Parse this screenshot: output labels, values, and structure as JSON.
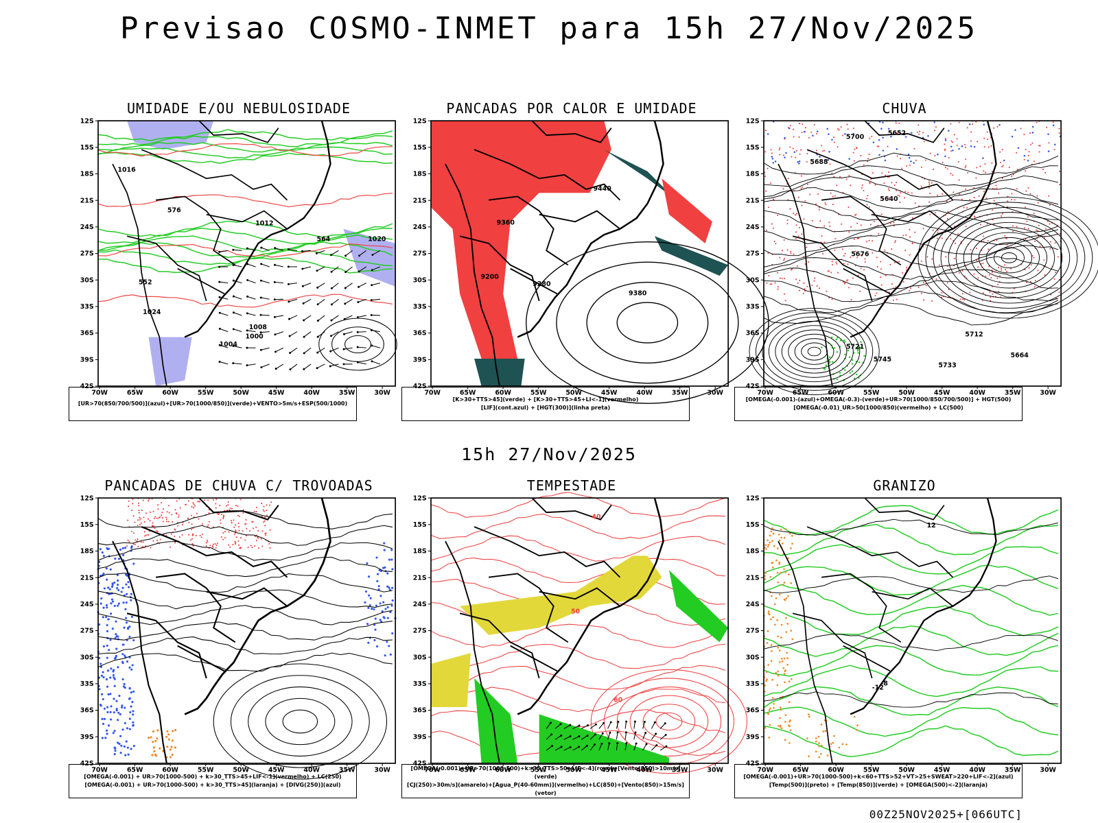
{
  "title": "Previsao COSMO-INMET  para 15h 27/Nov/2025",
  "mid_time": "15h 27/Nov/2025",
  "footer": "00Z25NOV2025+[066UTC]",
  "lat_ticks": [
    "12S",
    "15S",
    "18S",
    "21S",
    "24S",
    "27S",
    "30S",
    "33S",
    "36S",
    "39S",
    "42S"
  ],
  "lon_ticks": [
    "70W",
    "65W",
    "60W",
    "55W",
    "50W",
    "45W",
    "40W",
    "35W",
    "30W"
  ],
  "colors": {
    "red": "#f04040",
    "green": "#22cc22",
    "blue": "#3355ee",
    "lavender": "#b0b0f0",
    "teal": "#1f5252",
    "yellow": "#e2d83a",
    "orange": "#f08a2a"
  },
  "panels": [
    {
      "title": "UMIDADE E/OU NEBULOSIDADE",
      "legend": [
        "[UR>70(850/700/500)](azul)+[UR>70(1000/850)](verde)+VENTO>5m/s+ESP(500/1000)"
      ],
      "labels": [
        "1004",
        "1008",
        "1012",
        "1016",
        "1020",
        "1024",
        "1000",
        "552",
        "564",
        "576"
      ]
    },
    {
      "title": "PANCADAS POR CALOR E UMIDADE",
      "legend": [
        "[K>30+TTS>45](verde) + [K>30+TTS>45+LI<-1](vermelho)",
        "[LIF](cont.azul) + [HGT(300)](linha preta)"
      ],
      "labels": [
        "9440",
        "9380",
        "9280",
        "9200",
        "9360"
      ]
    },
    {
      "title": "CHUVA",
      "legend": [
        "[OMEGA(-0.001)-(azul)+OMEGA(-0.3)-(verde)+UR>70(1000/850/700/500)] + HGT(500)",
        "[OMEGA(-0.01)_UR>50(1000/850)(vermelho) + LC(500)"
      ],
      "labels": [
        "5745",
        "5733",
        "5721",
        "5712",
        "5700",
        "5688",
        "5676",
        "5664",
        "5652",
        "5640"
      ]
    },
    {
      "title": "PANCADAS DE CHUVA C/ TROVOADAS",
      "legend": [
        "[OMEGA(-0.001) + UR>70(1000-500) + k>30_TTS>45+LIF<-1](vermelho) + LC(250)",
        "[OMEGA(-0.001) + UR>70(1000-500) + k>30_TTS>45](laranja) + [DIVG(250)](azul)"
      ],
      "labels": []
    },
    {
      "title": "TEMPESTADE",
      "legend": [
        "[OMEGA(-0.001)+UR>70(1000-500)+k>35_TTS>50+LIF<-4](roxo)+[Vento(850)>10m/s](verde)",
        "[CJ(250)>30m/s](amarelo)+[Agua_P(40-60mm)](vermelho)+LC(850)+[Vento(850)>15m/s](vetor)"
      ],
      "labels": [
        "40",
        "50",
        "60"
      ]
    },
    {
      "title": "GRANIZO",
      "legend": [
        "[OMEGA(-0.001)+UR>70(1000-500)+k<60+TTS>52+VT>25+SWEAT>220+LIF<-2](azul)",
        "[Temp(500)](preto) + [Temp(850)](verde) + [OMEGA(500)<-2](laranja)"
      ],
      "labels": [
        "-12",
        "-8",
        "12"
      ]
    }
  ]
}
